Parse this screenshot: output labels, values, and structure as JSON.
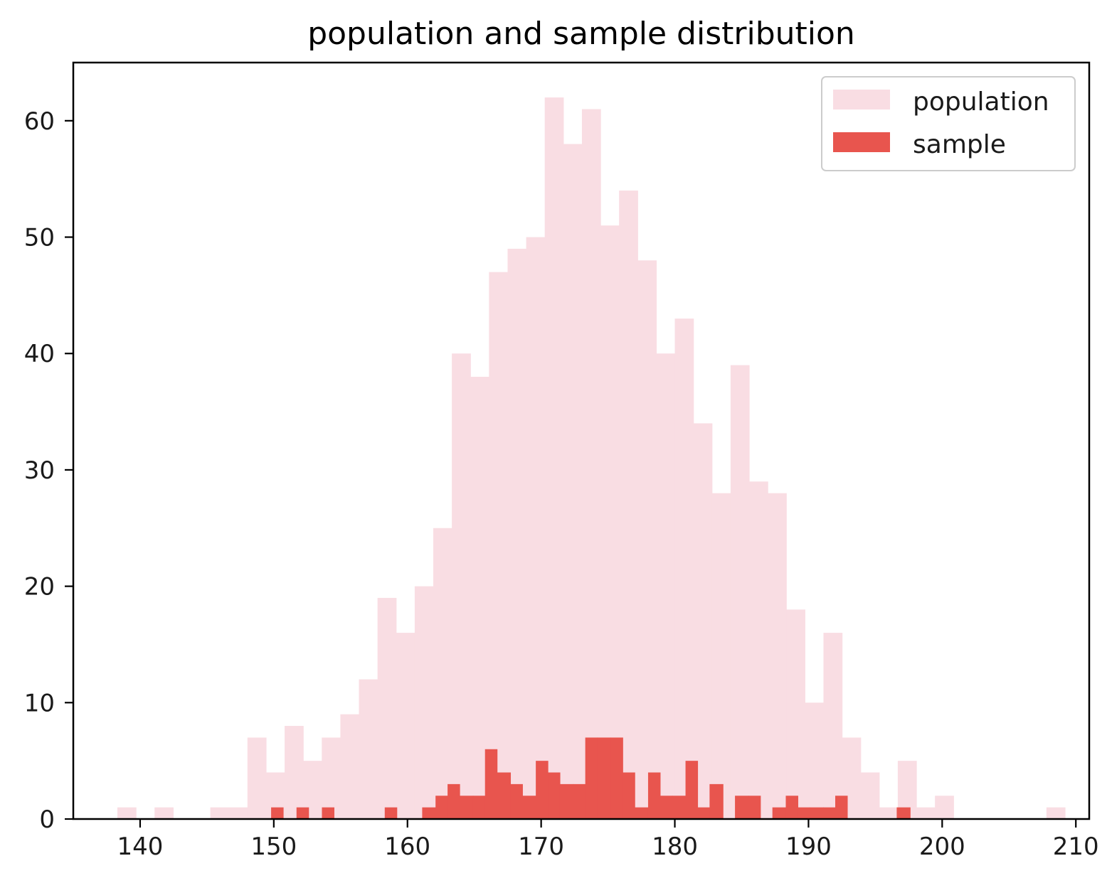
{
  "chart_data": {
    "type": "histogram",
    "title": "population and sample distribution",
    "xlabel": "",
    "ylabel": "",
    "xlim": [
      135,
      211
    ],
    "ylim": [
      0,
      65
    ],
    "xticks": [
      140,
      150,
      160,
      170,
      180,
      190,
      200,
      210
    ],
    "yticks": [
      0,
      10,
      20,
      30,
      40,
      50,
      60
    ],
    "legend_position": "top-right",
    "series": [
      {
        "name": "population",
        "color": "#f9dde3",
        "bin_start": 138.3,
        "bin_width": 1.39,
        "counts": [
          1,
          0,
          1,
          0,
          0,
          1,
          1,
          7,
          4,
          8,
          5,
          7,
          9,
          12,
          19,
          16,
          20,
          25,
          40,
          38,
          47,
          49,
          50,
          62,
          58,
          61,
          51,
          54,
          48,
          40,
          43,
          34,
          28,
          39,
          29,
          28,
          18,
          10,
          16,
          7,
          4,
          1,
          5,
          1,
          2,
          0,
          0,
          0,
          0,
          0,
          1
        ]
      },
      {
        "name": "sample",
        "color": "#e8554e",
        "bins": [
          {
            "x0": 149.8,
            "x1": 150.7,
            "count": 1
          },
          {
            "x0": 151.7,
            "x1": 152.6,
            "count": 1
          },
          {
            "x0": 153.6,
            "x1": 154.5,
            "count": 1
          },
          {
            "x0": 158.3,
            "x1": 159.2,
            "count": 1
          },
          {
            "x0": 161.1,
            "x1": 162.1,
            "count": 1
          },
          {
            "x0": 162.1,
            "x1": 163.0,
            "count": 2
          },
          {
            "x0": 163.0,
            "x1": 163.9,
            "count": 3
          },
          {
            "x0": 163.9,
            "x1": 164.9,
            "count": 2
          },
          {
            "x0": 164.9,
            "x1": 165.8,
            "count": 2
          },
          {
            "x0": 165.8,
            "x1": 166.7,
            "count": 6
          },
          {
            "x0": 166.7,
            "x1": 167.7,
            "count": 4
          },
          {
            "x0": 167.7,
            "x1": 168.6,
            "count": 3
          },
          {
            "x0": 168.6,
            "x1": 169.6,
            "count": 2
          },
          {
            "x0": 169.6,
            "x1": 170.5,
            "count": 5
          },
          {
            "x0": 170.5,
            "x1": 171.4,
            "count": 4
          },
          {
            "x0": 171.4,
            "x1": 172.4,
            "count": 3
          },
          {
            "x0": 172.4,
            "x1": 173.3,
            "count": 3
          },
          {
            "x0": 173.3,
            "x1": 174.2,
            "count": 7
          },
          {
            "x0": 174.2,
            "x1": 175.2,
            "count": 7
          },
          {
            "x0": 175.2,
            "x1": 176.1,
            "count": 7
          },
          {
            "x0": 176.1,
            "x1": 177.0,
            "count": 4
          },
          {
            "x0": 177.0,
            "x1": 178.0,
            "count": 1
          },
          {
            "x0": 178.0,
            "x1": 178.9,
            "count": 4
          },
          {
            "x0": 178.9,
            "x1": 179.8,
            "count": 2
          },
          {
            "x0": 179.8,
            "x1": 180.8,
            "count": 2
          },
          {
            "x0": 180.8,
            "x1": 181.7,
            "count": 5
          },
          {
            "x0": 181.7,
            "x1": 182.6,
            "count": 1
          },
          {
            "x0": 182.6,
            "x1": 183.6,
            "count": 3
          },
          {
            "x0": 184.5,
            "x1": 185.5,
            "count": 2
          },
          {
            "x0": 185.5,
            "x1": 186.4,
            "count": 2
          },
          {
            "x0": 187.3,
            "x1": 188.3,
            "count": 1
          },
          {
            "x0": 188.3,
            "x1": 189.2,
            "count": 2
          },
          {
            "x0": 189.2,
            "x1": 190.1,
            "count": 1
          },
          {
            "x0": 190.1,
            "x1": 191.1,
            "count": 1
          },
          {
            "x0": 191.1,
            "x1": 192.0,
            "count": 1
          },
          {
            "x0": 192.0,
            "x1": 192.9,
            "count": 2
          },
          {
            "x0": 196.6,
            "x1": 197.6,
            "count": 1
          }
        ]
      }
    ]
  }
}
